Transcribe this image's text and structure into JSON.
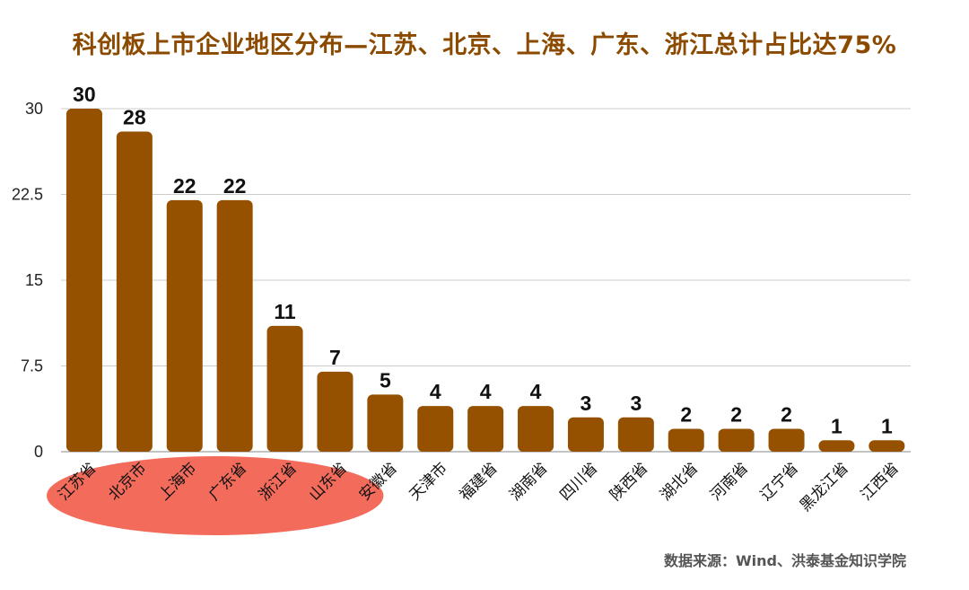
{
  "title": "科创板上市企业地区分布—江苏、北京、上海、广东、浙江总计占比达75%",
  "source": "数据来源：Wind、洪泰基金知识学院",
  "colors": {
    "bar": "#955000",
    "title": "#8b4a00",
    "highlight": "#f26b5b",
    "grid": "#cccccc"
  },
  "chart_data": {
    "type": "bar",
    "categories": [
      "江苏省",
      "北京市",
      "上海市",
      "广东省",
      "浙江省",
      "山东省",
      "安徽省",
      "天津市",
      "福建省",
      "湖南省",
      "四川省",
      "陕西省",
      "湖北省",
      "河南省",
      "辽宁省",
      "黑龙江省",
      "江西省"
    ],
    "values": [
      30,
      28,
      22,
      22,
      11,
      7,
      5,
      4,
      4,
      4,
      3,
      3,
      2,
      2,
      2,
      1,
      1
    ],
    "ylim": [
      0,
      30
    ],
    "yticks": [
      0,
      7.5,
      15,
      22.5,
      30
    ],
    "ytick_labels": [
      "0",
      "7.5",
      "15",
      "22.5",
      "30"
    ],
    "grid": true,
    "data_labels": true,
    "highlighted_categories": [
      "江苏省",
      "北京市",
      "上海市",
      "广东省",
      "浙江省",
      "山东省"
    ]
  }
}
